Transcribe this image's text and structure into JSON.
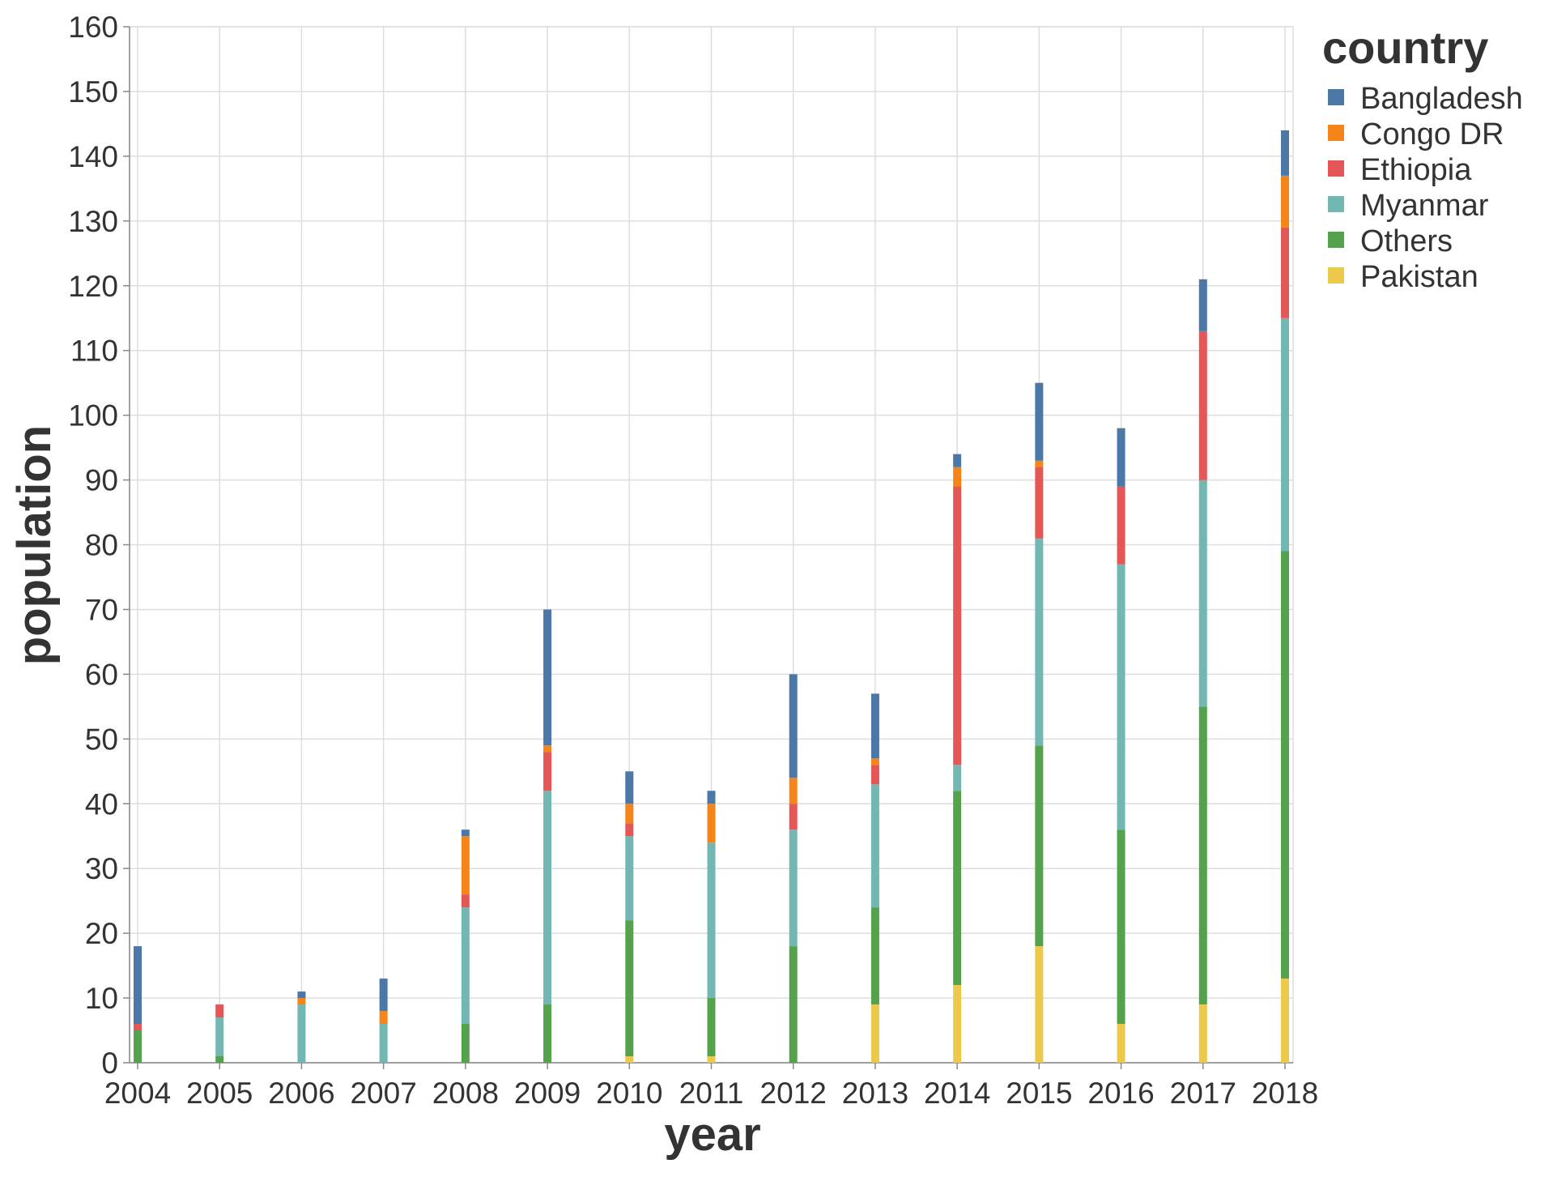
{
  "chart_data": {
    "type": "bar",
    "stacked": true,
    "xlabel": "year",
    "ylabel": "population",
    "ylim": [
      0,
      160
    ],
    "yticks": [
      0,
      10,
      20,
      30,
      40,
      50,
      60,
      70,
      80,
      90,
      100,
      110,
      120,
      130,
      140,
      150,
      160
    ],
    "grid": true,
    "legend": {
      "title": "country",
      "position": "top-right"
    },
    "categories": [
      "2004",
      "2005",
      "2006",
      "2007",
      "2008",
      "2009",
      "2010",
      "2011",
      "2012",
      "2013",
      "2014",
      "2015",
      "2016",
      "2017",
      "2018"
    ],
    "series": [
      {
        "name": "Pakistan",
        "color": "#ECC94B",
        "values": [
          0,
          0,
          0,
          0,
          0,
          0,
          1,
          1,
          0,
          9,
          12,
          18,
          6,
          9,
          13
        ]
      },
      {
        "name": "Others",
        "color": "#54A24B",
        "values": [
          5,
          1,
          0,
          0,
          6,
          9,
          21,
          9,
          18,
          15,
          30,
          31,
          30,
          46,
          66
        ]
      },
      {
        "name": "Myanmar",
        "color": "#72B7B2",
        "values": [
          0,
          6,
          9,
          6,
          18,
          33,
          13,
          24,
          18,
          19,
          4,
          32,
          41,
          35,
          36
        ]
      },
      {
        "name": "Ethiopia",
        "color": "#E45756",
        "values": [
          1,
          2,
          0,
          0,
          2,
          6,
          2,
          0,
          4,
          3,
          43,
          11,
          12,
          23,
          14
        ]
      },
      {
        "name": "Congo DR",
        "color": "#F58518",
        "values": [
          0,
          0,
          1,
          2,
          9,
          1,
          3,
          6,
          4,
          1,
          3,
          1,
          0,
          0,
          8
        ]
      },
      {
        "name": "Bangladesh",
        "color": "#4C78A8",
        "values": [
          12,
          0,
          1,
          5,
          1,
          21,
          5,
          2,
          16,
          10,
          2,
          12,
          9,
          8,
          7
        ]
      }
    ],
    "legend_order": [
      "Bangladesh",
      "Congo DR",
      "Ethiopia",
      "Myanmar",
      "Others",
      "Pakistan"
    ]
  }
}
